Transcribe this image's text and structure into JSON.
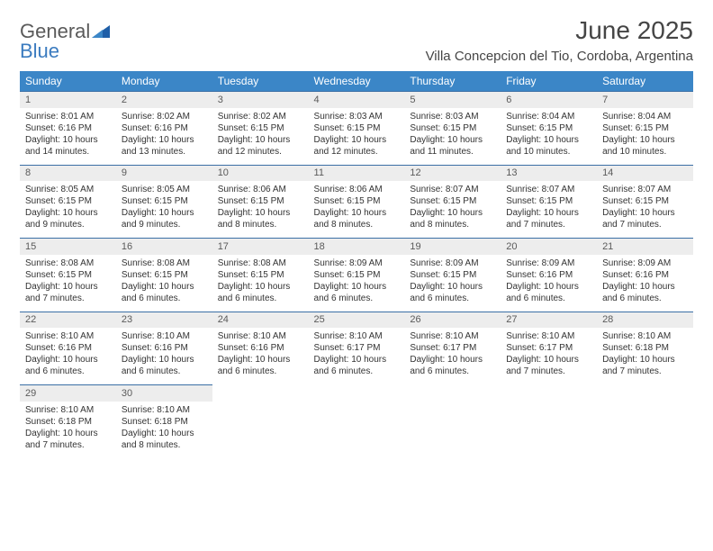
{
  "logo": {
    "text1": "General",
    "text2": "Blue"
  },
  "title": "June 2025",
  "location": "Villa Concepcion del Tio, Cordoba, Argentina",
  "header_bg": "#3b86c7",
  "daynum_bg": "#ededed",
  "border_color": "#3b6fa5",
  "text_color": "#333333",
  "day_names": [
    "Sunday",
    "Monday",
    "Tuesday",
    "Wednesday",
    "Thursday",
    "Friday",
    "Saturday"
  ],
  "weeks": [
    [
      {
        "n": "1",
        "sr": "8:01 AM",
        "ss": "6:16 PM",
        "dl": "10 hours and 14 minutes."
      },
      {
        "n": "2",
        "sr": "8:02 AM",
        "ss": "6:16 PM",
        "dl": "10 hours and 13 minutes."
      },
      {
        "n": "3",
        "sr": "8:02 AM",
        "ss": "6:15 PM",
        "dl": "10 hours and 12 minutes."
      },
      {
        "n": "4",
        "sr": "8:03 AM",
        "ss": "6:15 PM",
        "dl": "10 hours and 12 minutes."
      },
      {
        "n": "5",
        "sr": "8:03 AM",
        "ss": "6:15 PM",
        "dl": "10 hours and 11 minutes."
      },
      {
        "n": "6",
        "sr": "8:04 AM",
        "ss": "6:15 PM",
        "dl": "10 hours and 10 minutes."
      },
      {
        "n": "7",
        "sr": "8:04 AM",
        "ss": "6:15 PM",
        "dl": "10 hours and 10 minutes."
      }
    ],
    [
      {
        "n": "8",
        "sr": "8:05 AM",
        "ss": "6:15 PM",
        "dl": "10 hours and 9 minutes."
      },
      {
        "n": "9",
        "sr": "8:05 AM",
        "ss": "6:15 PM",
        "dl": "10 hours and 9 minutes."
      },
      {
        "n": "10",
        "sr": "8:06 AM",
        "ss": "6:15 PM",
        "dl": "10 hours and 8 minutes."
      },
      {
        "n": "11",
        "sr": "8:06 AM",
        "ss": "6:15 PM",
        "dl": "10 hours and 8 minutes."
      },
      {
        "n": "12",
        "sr": "8:07 AM",
        "ss": "6:15 PM",
        "dl": "10 hours and 8 minutes."
      },
      {
        "n": "13",
        "sr": "8:07 AM",
        "ss": "6:15 PM",
        "dl": "10 hours and 7 minutes."
      },
      {
        "n": "14",
        "sr": "8:07 AM",
        "ss": "6:15 PM",
        "dl": "10 hours and 7 minutes."
      }
    ],
    [
      {
        "n": "15",
        "sr": "8:08 AM",
        "ss": "6:15 PM",
        "dl": "10 hours and 7 minutes."
      },
      {
        "n": "16",
        "sr": "8:08 AM",
        "ss": "6:15 PM",
        "dl": "10 hours and 6 minutes."
      },
      {
        "n": "17",
        "sr": "8:08 AM",
        "ss": "6:15 PM",
        "dl": "10 hours and 6 minutes."
      },
      {
        "n": "18",
        "sr": "8:09 AM",
        "ss": "6:15 PM",
        "dl": "10 hours and 6 minutes."
      },
      {
        "n": "19",
        "sr": "8:09 AM",
        "ss": "6:15 PM",
        "dl": "10 hours and 6 minutes."
      },
      {
        "n": "20",
        "sr": "8:09 AM",
        "ss": "6:16 PM",
        "dl": "10 hours and 6 minutes."
      },
      {
        "n": "21",
        "sr": "8:09 AM",
        "ss": "6:16 PM",
        "dl": "10 hours and 6 minutes."
      }
    ],
    [
      {
        "n": "22",
        "sr": "8:10 AM",
        "ss": "6:16 PM",
        "dl": "10 hours and 6 minutes."
      },
      {
        "n": "23",
        "sr": "8:10 AM",
        "ss": "6:16 PM",
        "dl": "10 hours and 6 minutes."
      },
      {
        "n": "24",
        "sr": "8:10 AM",
        "ss": "6:16 PM",
        "dl": "10 hours and 6 minutes."
      },
      {
        "n": "25",
        "sr": "8:10 AM",
        "ss": "6:17 PM",
        "dl": "10 hours and 6 minutes."
      },
      {
        "n": "26",
        "sr": "8:10 AM",
        "ss": "6:17 PM",
        "dl": "10 hours and 6 minutes."
      },
      {
        "n": "27",
        "sr": "8:10 AM",
        "ss": "6:17 PM",
        "dl": "10 hours and 7 minutes."
      },
      {
        "n": "28",
        "sr": "8:10 AM",
        "ss": "6:18 PM",
        "dl": "10 hours and 7 minutes."
      }
    ],
    [
      {
        "n": "29",
        "sr": "8:10 AM",
        "ss": "6:18 PM",
        "dl": "10 hours and 7 minutes."
      },
      {
        "n": "30",
        "sr": "8:10 AM",
        "ss": "6:18 PM",
        "dl": "10 hours and 8 minutes."
      },
      null,
      null,
      null,
      null,
      null
    ]
  ],
  "labels": {
    "sunrise": "Sunrise: ",
    "sunset": "Sunset: ",
    "daylight": "Daylight: "
  }
}
